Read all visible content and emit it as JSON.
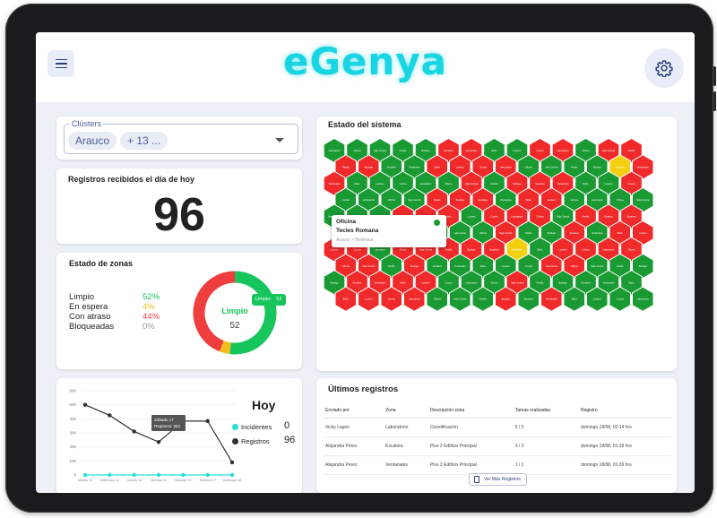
{
  "app": {
    "logo": "eGenya"
  },
  "clusters": {
    "legend": "Clústers",
    "chips": [
      "Arauco",
      "+ 13 ..."
    ]
  },
  "registros_hoy": {
    "title": "Registros recibidos el día de hoy",
    "value": "96"
  },
  "estado_zonas": {
    "title": "Estado de zonas",
    "rows": [
      {
        "label": "Limpio",
        "value": "52%",
        "color": "#16c55c"
      },
      {
        "label": "En espera",
        "value": "4%",
        "color": "#f2c01e"
      },
      {
        "label": "Con atraso",
        "value": "44%",
        "color": "#f03d3d"
      },
      {
        "label": "Bloqueadas",
        "value": "0%",
        "color": "#9a9a9a"
      }
    ],
    "donut_center_label": "Limpio",
    "donut_center_value": "52",
    "donut_tooltip_label": "Limpio:",
    "donut_tooltip_value": "52",
    "segments": {
      "limpio": 52,
      "espera": 4,
      "atraso": 44,
      "bloqueadas": 0
    }
  },
  "sistema": {
    "title": "Estado del sistema",
    "tooltip": {
      "label": "Oficina",
      "name": "Tecles Romana",
      "sub": "Arauco > Bonhaca"
    },
    "colors": {
      "green": "#1a9a32",
      "red": "#f02a2a",
      "yellow": "#f4d012"
    }
  },
  "hoy": {
    "title": "Hoy",
    "legend": [
      {
        "label": "Incidentes",
        "value": "0",
        "color": "#26e0d4"
      },
      {
        "label": "Registros",
        "value": "96",
        "color": "#2d3134"
      }
    ],
    "tooltip": {
      "line1": "Sábado 17",
      "line2": "Registros: 384"
    }
  },
  "chart_data": {
    "type": "line",
    "categories": [
      "Martes 11",
      "Miércoles 12",
      "Jueves 13",
      "Viernes 14",
      "Sábado 15",
      "Sábado 17",
      "Domingo 18"
    ],
    "ylim": [
      0,
      600
    ],
    "yticks": [
      "0",
      "100",
      "200",
      "300",
      "400",
      "500",
      "600"
    ],
    "series": [
      {
        "name": "Registros",
        "values": [
          500,
          425,
          310,
          235,
          384,
          384,
          90
        ]
      },
      {
        "name": "Incidentes",
        "values": [
          0,
          0,
          0,
          0,
          0,
          0,
          0
        ]
      }
    ]
  },
  "ultimos": {
    "title": "Últimos registros",
    "columns": [
      "Enviado por",
      "Zona",
      "Descripción zona",
      "Tareas realizadas",
      "Registro"
    ],
    "rows": [
      [
        "Vicky Lagos",
        "Laboratorio",
        "Coestificación",
        "5 / 5",
        "domingo 18/08, 02:14 hrs"
      ],
      [
        "Alejandra Perez",
        "Escalera",
        "Piso 2 Edificio Principal",
        "3 / 3",
        "domingo 18/08, 01:39 hrs"
      ],
      [
        "Alejandra Perez",
        "Ventanales",
        "Piso 2 Edificio Principal",
        "1 / 1",
        "domingo 18/08, 01:39 hrs"
      ]
    ],
    "more_button": "Ver Más Registros"
  }
}
